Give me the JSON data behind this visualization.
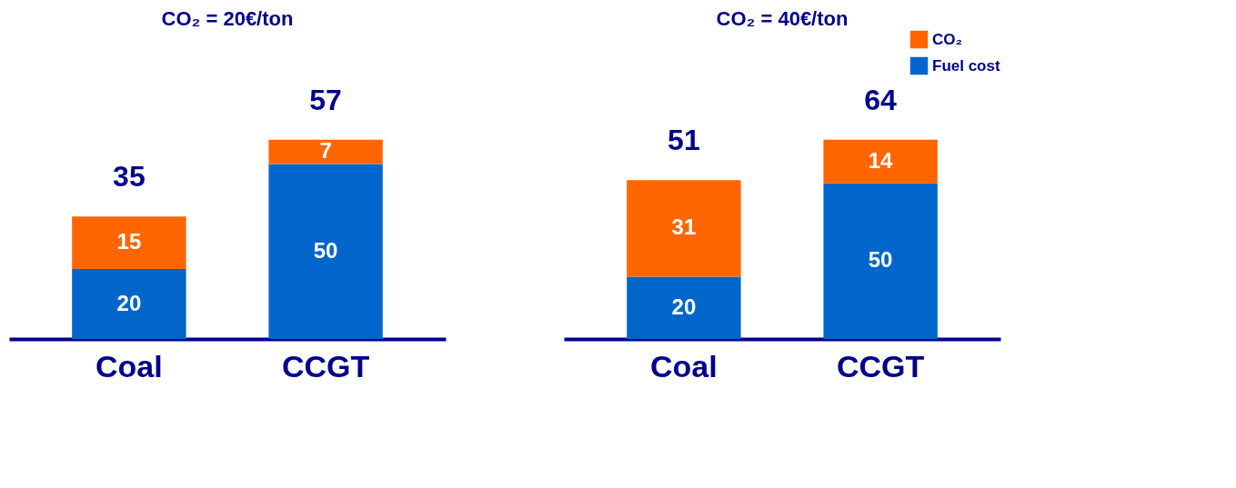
{
  "chart_data": [
    {
      "type": "bar",
      "stacked": true,
      "title": "CO₂ = 20€/ton",
      "categories": [
        "Coal",
        "CCGT"
      ],
      "series": [
        {
          "color": "#0066cc",
          "values": [
            20,
            50
          ]
        },
        {
          "color": "#ff6600",
          "values": [
            15,
            7
          ]
        }
      ],
      "data_labels": true,
      "totals": [
        "35",
        "57"
      ],
      "grid": false,
      "legend": false
    },
    {
      "type": "bar",
      "stacked": true,
      "title": "CO₂ = 40€/ton",
      "categories": [
        "Coal",
        "CCGT"
      ],
      "series": [
        {
          "name": "Fuel cost",
          "color": "#0066cc",
          "values": [
            20,
            50
          ]
        },
        {
          "name": "CO₂",
          "color": "#ff6600",
          "values": [
            31,
            14
          ]
        }
      ],
      "data_labels": true,
      "totals": [
        "51",
        "64"
      ],
      "grid": false,
      "legend": "top right"
    }
  ]
}
